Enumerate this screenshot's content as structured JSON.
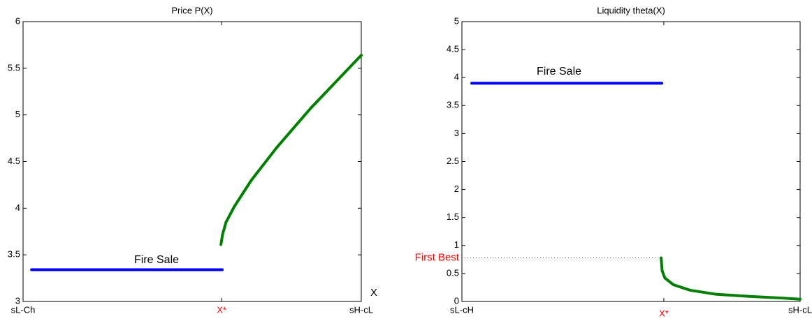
{
  "chart_data": [
    {
      "type": "line",
      "title": "Price P(X)",
      "xlabel": "X",
      "xlim": [
        0,
        1
      ],
      "xticks": [
        {
          "value": 0,
          "label": "sL-Ch"
        },
        {
          "value": 0.587,
          "label": "X*"
        },
        {
          "value": 1,
          "label": "sH-cL"
        }
      ],
      "xtick_label_colors": [
        "#000000",
        "#ff0000",
        "#000000"
      ],
      "ylim": [
        3,
        6
      ],
      "yticks": [
        3,
        3.5,
        4,
        4.5,
        5,
        5.5,
        6
      ],
      "annotations": [
        "Fire Sale"
      ],
      "series": [
        {
          "color": "#0000ff",
          "x": [
            0.025,
            0.589
          ],
          "values": [
            3.34,
            3.34
          ]
        },
        {
          "color": "#008000",
          "x": [
            0.585,
            0.59,
            0.6,
            0.625,
            0.675,
            0.75,
            0.85,
            0.95,
            1.0
          ],
          "values": [
            3.61,
            3.72,
            3.85,
            4.02,
            4.3,
            4.65,
            5.07,
            5.45,
            5.64
          ]
        }
      ]
    },
    {
      "type": "line",
      "title": "Liquidity theta(X)",
      "xlim": [
        0,
        1
      ],
      "xticks": [
        {
          "value": 0,
          "label": "sL-cH"
        },
        {
          "value": 0.597,
          "label": "X*"
        },
        {
          "value": 1,
          "label": "sH-cL"
        }
      ],
      "xtick_label_colors": [
        "#000000",
        "#ff0000",
        "#000000"
      ],
      "ylim": [
        0,
        5
      ],
      "yticks": [
        0,
        0.5,
        1,
        1.5,
        2,
        2.5,
        3,
        3.5,
        4,
        4.5,
        5
      ],
      "annotations": [
        "Fire Sale"
      ],
      "reference_line": {
        "label": "First Best",
        "value": 0.78,
        "color": "#ff0000"
      },
      "series": [
        {
          "color": "#0000ff",
          "x": [
            0.029,
            0.591
          ],
          "values": [
            3.9,
            3.9
          ]
        },
        {
          "color": "#008000",
          "x": [
            0.589,
            0.592,
            0.6,
            0.625,
            0.675,
            0.75,
            0.85,
            0.95,
            1.0
          ],
          "values": [
            0.78,
            0.55,
            0.42,
            0.3,
            0.2,
            0.13,
            0.09,
            0.06,
            0.04
          ]
        }
      ]
    }
  ]
}
